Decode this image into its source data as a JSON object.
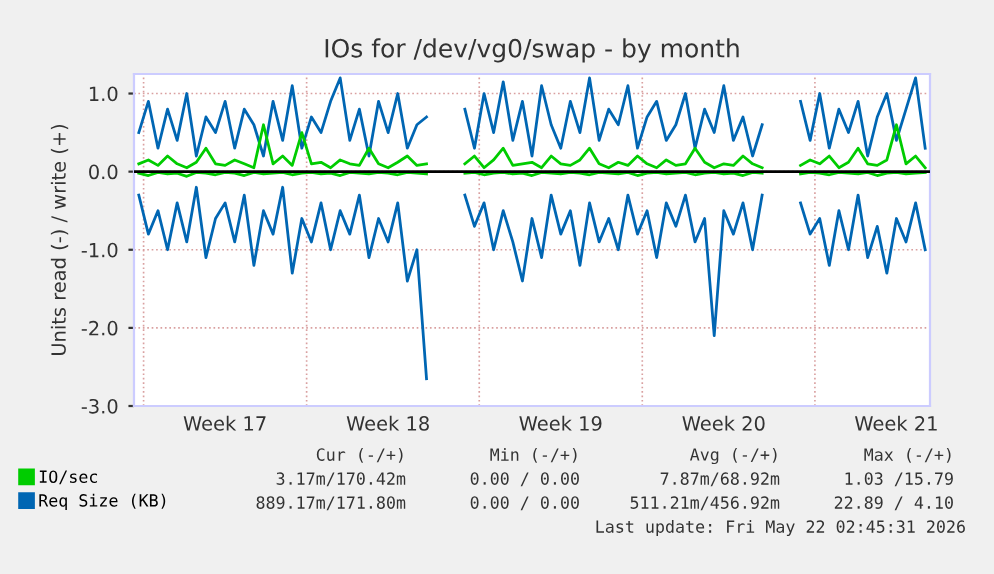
{
  "chart_data": {
    "type": "line",
    "title": "IOs for /dev/vg0/swap - by month",
    "ylabel": "Units read (-) / write (+)",
    "categories": [
      null,
      null,
      null,
      null,
      null,
      null,
      null,
      null,
      null,
      "Week 17",
      null,
      null,
      null,
      null,
      null,
      null,
      null,
      null,
      null,
      null,
      null,
      null,
      null,
      null,
      null,
      null,
      "Week 18",
      null,
      null,
      null,
      null,
      null,
      null,
      null,
      null,
      null,
      null,
      null,
      null,
      null,
      null,
      null,
      null,
      null,
      "Week 19",
      null,
      null,
      null,
      null,
      null,
      null,
      null,
      null,
      null,
      null,
      null,
      null,
      null,
      null,
      null,
      null,
      "Week 20",
      null,
      null,
      null,
      null,
      null,
      null,
      null,
      null,
      null,
      null,
      null,
      null,
      null,
      null,
      null,
      null,
      null,
      "Week 21",
      null,
      null,
      null
    ],
    "series": [
      {
        "name": "Req Size (KB)",
        "color": "#0066b3",
        "values": [
          0.5,
          0.9,
          0.3,
          0.8,
          0.4,
          1.0,
          0.2,
          0.7,
          0.5,
          0.9,
          0.3,
          0.8,
          0.6,
          0.2,
          0.9,
          0.4,
          1.1,
          0.3,
          0.7,
          0.5,
          0.9,
          1.2,
          0.4,
          0.8,
          0.2,
          0.9,
          0.5,
          1.0,
          0.3,
          0.6,
          0.7,
          null,
          null,
          null,
          0.8,
          0.3,
          1.0,
          0.5,
          1.15,
          0.4,
          0.9,
          0.2,
          1.1,
          0.6,
          0.3,
          0.9,
          0.5,
          1.2,
          0.4,
          0.8,
          0.6,
          1.1,
          0.3,
          0.7,
          0.9,
          0.4,
          0.6,
          1.0,
          0.3,
          0.8,
          0.5,
          1.1,
          0.4,
          0.7,
          0.2,
          0.6,
          null,
          null,
          null,
          0.9,
          0.4,
          1.0,
          0.3,
          0.8,
          0.5,
          0.9,
          0.2,
          0.7,
          1.0,
          0.4,
          0.8,
          1.2,
          0.3
        ]
      },
      {
        "color": "#0066b3",
        "values": [
          -0.3,
          -0.8,
          -0.5,
          -1.0,
          -0.4,
          -0.9,
          -0.2,
          -1.1,
          -0.6,
          -0.4,
          -0.9,
          -0.3,
          -1.2,
          -0.5,
          -0.8,
          -0.2,
          -1.3,
          -0.6,
          -0.9,
          -0.4,
          -1.0,
          -0.5,
          -0.8,
          -0.3,
          -1.1,
          -0.6,
          -0.9,
          -0.4,
          -1.4,
          -1.0,
          -2.65,
          null,
          null,
          null,
          -0.3,
          -0.7,
          -0.4,
          -1.0,
          -0.5,
          -0.9,
          -1.4,
          -0.6,
          -1.1,
          -0.3,
          -0.8,
          -0.5,
          -1.2,
          -0.4,
          -0.9,
          -0.6,
          -1.0,
          -0.3,
          -0.8,
          -0.5,
          -1.1,
          -0.4,
          -0.7,
          -0.3,
          -0.9,
          -0.6,
          -2.1,
          -0.5,
          -0.8,
          -0.4,
          -1.0,
          -0.3,
          null,
          null,
          null,
          -0.4,
          -0.8,
          -0.6,
          -1.2,
          -0.5,
          -1.0,
          -0.3,
          -1.1,
          -0.7,
          -1.3,
          -0.6,
          -0.9,
          -0.4,
          -1.0
        ]
      },
      {
        "name": "IO/sec",
        "color": "#00cc00",
        "values": [
          0.1,
          0.15,
          0.08,
          0.2,
          0.1,
          0.05,
          0.12,
          0.3,
          0.1,
          0.08,
          0.15,
          0.1,
          0.05,
          0.6,
          0.1,
          0.2,
          0.08,
          0.5,
          0.1,
          0.12,
          0.05,
          0.15,
          0.1,
          0.08,
          0.3,
          0.1,
          0.05,
          0.12,
          0.2,
          0.08,
          0.1,
          null,
          null,
          null,
          0.1,
          0.2,
          0.05,
          0.15,
          0.3,
          0.08,
          0.1,
          0.12,
          0.05,
          0.2,
          0.1,
          0.08,
          0.15,
          0.3,
          0.1,
          0.05,
          0.12,
          0.08,
          0.2,
          0.1,
          0.05,
          0.15,
          0.08,
          0.1,
          0.3,
          0.12,
          0.05,
          0.1,
          0.08,
          0.2,
          0.1,
          0.05,
          null,
          null,
          null,
          0.08,
          0.15,
          0.1,
          0.2,
          0.05,
          0.12,
          0.3,
          0.1,
          0.08,
          0.15,
          0.6,
          0.1,
          0.2,
          0.05
        ]
      },
      {
        "color": "#00cc00",
        "values": [
          -0.02,
          -0.05,
          -0.01,
          -0.03,
          -0.02,
          -0.06,
          -0.01,
          -0.02,
          -0.04,
          -0.01,
          -0.02,
          -0.05,
          -0.01,
          -0.03,
          -0.02,
          -0.01,
          -0.04,
          -0.02,
          -0.01,
          -0.03,
          -0.02,
          -0.05,
          -0.01,
          -0.02,
          -0.03,
          -0.01,
          -0.02,
          -0.04,
          -0.01,
          -0.02,
          -0.03,
          null,
          null,
          null,
          -0.02,
          -0.01,
          -0.04,
          -0.02,
          -0.01,
          -0.03,
          -0.02,
          -0.05,
          -0.01,
          -0.02,
          -0.03,
          -0.01,
          -0.02,
          -0.04,
          -0.01,
          -0.02,
          -0.03,
          -0.01,
          -0.05,
          -0.02,
          -0.01,
          -0.03,
          -0.02,
          -0.01,
          -0.04,
          -0.02,
          -0.01,
          -0.03,
          -0.02,
          -0.05,
          -0.01,
          -0.02,
          null,
          null,
          null,
          -0.03,
          -0.01,
          -0.02,
          -0.04,
          -0.01,
          -0.02,
          -0.03,
          -0.01,
          -0.05,
          -0.02,
          -0.01,
          -0.03,
          -0.02,
          -0.01
        ]
      }
    ],
    "ylim": [
      -3,
      1.25
    ],
    "yticks": [
      {
        "value": -3,
        "label": "-3.0"
      },
      {
        "value": -2,
        "label": "-2.0"
      },
      {
        "value": -1,
        "label": "-1.0"
      },
      {
        "value": 0,
        "label": "0.0"
      },
      {
        "value": 1,
        "label": "1.0"
      }
    ],
    "ref_lines": [
      {
        "axis": "y",
        "value": 0,
        "color": "#000000"
      }
    ],
    "grid": true,
    "legend": "bottom",
    "marker": "none",
    "line_style": "solid",
    "annotations": [
      "Cur (-/+)",
      "Min (-/+)",
      "Avg (-/+)",
      "Max (-/+)",
      "3.17m/170.42m",
      "0.00 / 0.00",
      "7.87m/68.92m",
      "1.03 /15.79",
      "889.17m/171.80m",
      "0.00 / 0.00",
      "511.21m/456.92m",
      "22.89 / 4.10",
      "Last update: Fri May 22 02:45:31 2026"
    ]
  }
}
